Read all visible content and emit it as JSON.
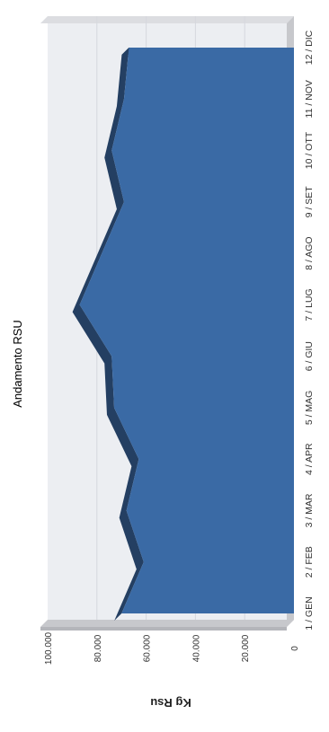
{
  "chart_data": {
    "type": "area",
    "title": "Andamento RSU",
    "ylabel": "Kg Rsu",
    "xlabel": "",
    "categories": [
      "1 / GEN",
      "2 / FEB",
      "3 / MAR",
      "4 / APR",
      "5 / MAG",
      "6 / GIU",
      "7 / LUG",
      "8 / AGO",
      "9 / SET",
      "10 / OTT",
      "11 / NOV",
      "12 / DIC"
    ],
    "series": [
      {
        "values": [
          70000,
          61000,
          68000,
          63000,
          73000,
          74000,
          87000,
          78000,
          69000,
          74000,
          69000,
          67000
        ]
      }
    ],
    "y_ticks": [
      "0",
      "20.000",
      "40.000",
      "60.000",
      "80.000",
      "100.000"
    ],
    "ylim": [
      0,
      100000
    ],
    "grid": true,
    "legend": "none",
    "orientation": "rotated 90° clockwise (read with page turned)",
    "colors": {
      "area_fill": "#3a6aa5",
      "area_edge": "#243f62",
      "plot_background": "#eceef2",
      "wall": "#c7c8cc",
      "gridline": "#d6d8de"
    }
  }
}
